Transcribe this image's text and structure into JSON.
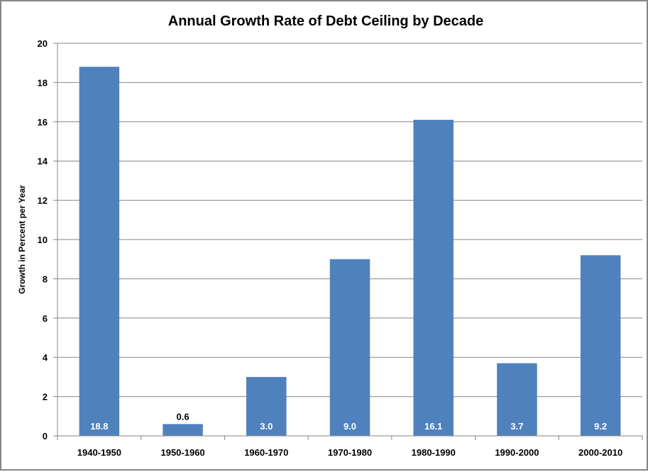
{
  "chart_data": {
    "type": "bar",
    "title": "Annual Growth Rate of Debt Ceiling by Decade",
    "xlabel": "",
    "ylabel": "Growth in Percent per Year",
    "categories": [
      "1940-1950",
      "1950-1960",
      "1960-1970",
      "1970-1980",
      "1980-1990",
      "1990-2000",
      "2000-2010"
    ],
    "values": [
      18.8,
      0.6,
      3.0,
      9.0,
      16.1,
      3.7,
      9.2
    ],
    "data_labels": [
      "18.8",
      "0.6",
      "3.0",
      "9.0",
      "16.1",
      "3.7",
      "9.2"
    ],
    "ylim": [
      0,
      20
    ],
    "yticks": [
      0,
      2,
      4,
      6,
      8,
      10,
      12,
      14,
      16,
      18,
      20
    ],
    "grid": true,
    "legend": "none",
    "colors": {
      "bar": "#4F81BD",
      "grid": "#868686",
      "inside_label": "#FFFFFF",
      "outside_label": "#000000"
    }
  }
}
